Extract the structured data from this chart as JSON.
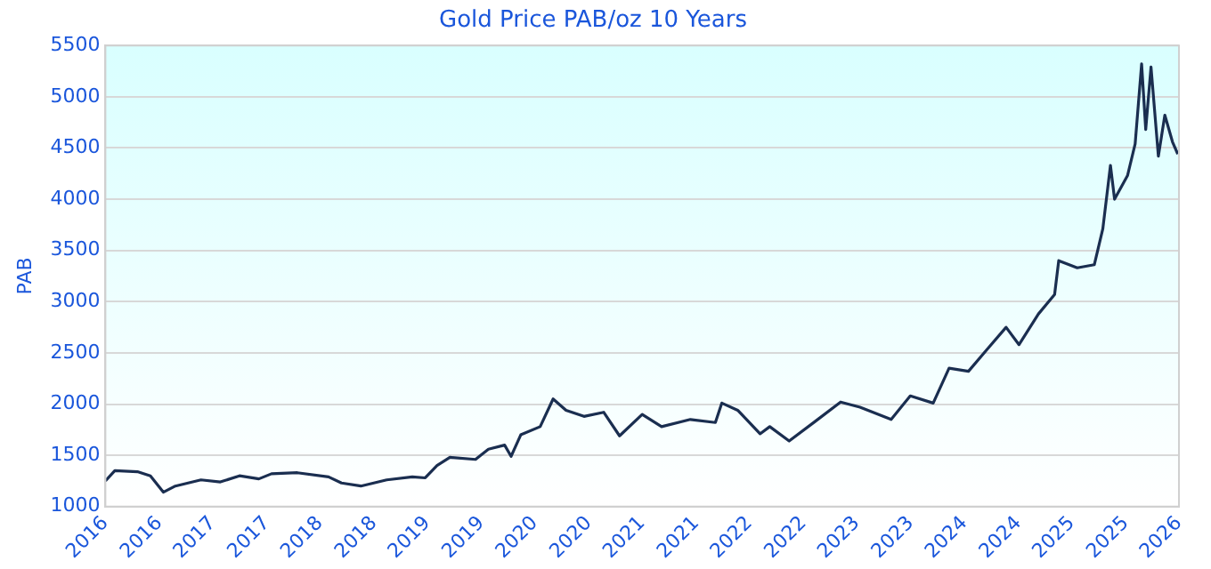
{
  "chart_data": {
    "type": "line",
    "title": "Gold Price PAB/oz 10 Years",
    "ylabel": "PAB",
    "x": [
      "2016-05-30",
      "2016-07-01",
      "2016-09-16",
      "2016-10-30",
      "2016-12-13",
      "2017-01-23",
      "2017-04-20",
      "2017-06-25",
      "2017-08-29",
      "2017-11-03",
      "2017-12-16",
      "2018-03-14",
      "2018-06-28",
      "2018-08-11",
      "2018-10-16",
      "2019-01-12",
      "2019-04-09",
      "2019-05-23",
      "2019-07-02",
      "2019-08-15",
      "2019-11-10",
      "2019-12-24",
      "2020-02-17",
      "2020-03-10",
      "2020-04-12",
      "2020-06-17",
      "2020-07-31",
      "2020-09-13",
      "2020-11-13",
      "2021-01-19",
      "2021-03-14",
      "2021-05-30",
      "2021-08-04",
      "2021-11-10",
      "2022-02-03",
      "2022-02-25",
      "2022-04-20",
      "2022-07-05",
      "2022-08-07",
      "2022-10-12",
      "2023-01-08",
      "2023-04-05",
      "2023-06-10",
      "2023-09-24",
      "2023-11-28",
      "2024-02-14",
      "2024-04-08",
      "2024-06-13",
      "2024-08-14",
      "2024-10-19",
      "2024-12-02",
      "2025-02-06",
      "2025-04-02",
      "2025-04-16",
      "2025-06-18",
      "2025-08-15",
      "2025-09-13",
      "2025-10-09",
      "2025-10-23",
      "2025-12-06",
      "2026-01-01",
      "2026-01-23",
      "2026-02-06",
      "2026-02-24",
      "2026-03-21",
      "2026-04-12",
      "2026-05-08",
      "2026-05-26"
    ],
    "series": [
      {
        "color": "#1a2e50",
        "values": [
          1250,
          1350,
          1340,
          1300,
          1140,
          1200,
          1260,
          1240,
          1300,
          1270,
          1320,
          1330,
          1290,
          1230,
          1200,
          1260,
          1290,
          1280,
          1400,
          1480,
          1460,
          1560,
          1600,
          1490,
          1700,
          1780,
          2050,
          1940,
          1880,
          1920,
          1690,
          1900,
          1780,
          1850,
          1820,
          2010,
          1940,
          1710,
          1780,
          1640,
          1830,
          2020,
          1970,
          1850,
          2080,
          2010,
          2350,
          2320,
          2530,
          2750,
          2580,
          2880,
          3070,
          3400,
          3330,
          3360,
          3710,
          4330,
          4000,
          4230,
          4540,
          5320,
          4680,
          5290,
          4420,
          4820,
          4560,
          4440
        ]
      }
    ],
    "xlim": [
      "2016-05-30",
      "2026-05-30"
    ],
    "xticks": [
      {
        "value": "2016-05-30",
        "label": "2016"
      },
      {
        "value": "2016-11-30",
        "label": "2016"
      },
      {
        "value": "2017-05-30",
        "label": "2017"
      },
      {
        "value": "2017-11-30",
        "label": "2017"
      },
      {
        "value": "2018-05-30",
        "label": "2018"
      },
      {
        "value": "2018-11-30",
        "label": "2018"
      },
      {
        "value": "2019-05-30",
        "label": "2019"
      },
      {
        "value": "2019-11-30",
        "label": "2019"
      },
      {
        "value": "2020-05-30",
        "label": "2020"
      },
      {
        "value": "2020-11-30",
        "label": "2020"
      },
      {
        "value": "2021-05-30",
        "label": "2021"
      },
      {
        "value": "2021-11-30",
        "label": "2021"
      },
      {
        "value": "2022-05-30",
        "label": "2022"
      },
      {
        "value": "2022-11-30",
        "label": "2022"
      },
      {
        "value": "2023-05-30",
        "label": "2023"
      },
      {
        "value": "2023-11-30",
        "label": "2023"
      },
      {
        "value": "2024-05-30",
        "label": "2024"
      },
      {
        "value": "2024-11-30",
        "label": "2024"
      },
      {
        "value": "2025-05-30",
        "label": "2025"
      },
      {
        "value": "2025-11-30",
        "label": "2025"
      },
      {
        "value": "2026-05-30",
        "label": "2026"
      }
    ],
    "ylim": [
      1000,
      5500
    ],
    "yticks": [
      1000,
      1500,
      2000,
      2500,
      3000,
      3500,
      4000,
      4500,
      5000,
      5500
    ],
    "grid": "y",
    "legend": false,
    "marker": "none",
    "line_style": "solid"
  }
}
